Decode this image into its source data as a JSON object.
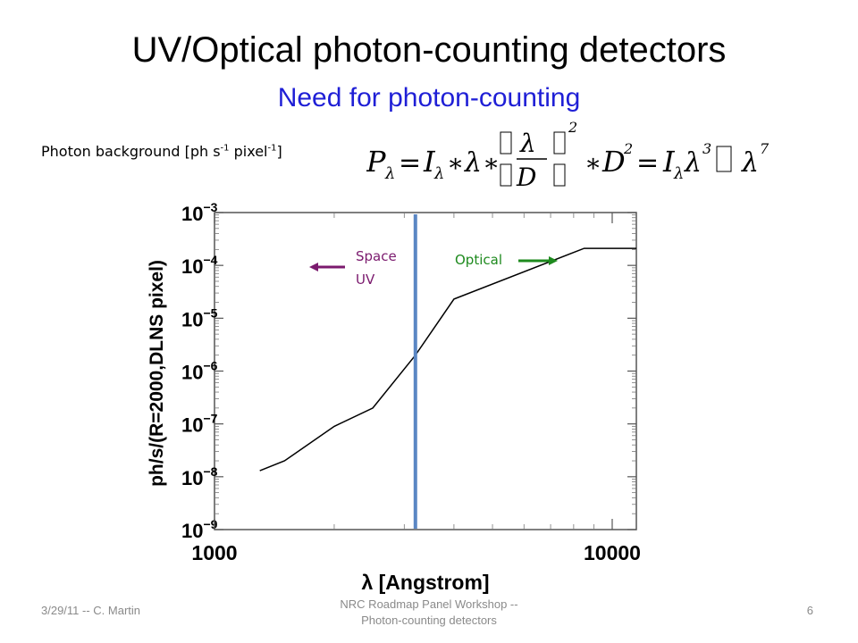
{
  "slide": {
    "title": "UV/Optical photon-counting detectors",
    "subtitle": "Need for photon-counting",
    "background_label": "Photon background [ph s",
    "background_label_exp1": "-1",
    "background_label_mid": " pixel",
    "background_label_exp2": "-1",
    "background_label_end": "]"
  },
  "footer": {
    "left": "3/29/11 -- C. Martin",
    "center_line1": "NRC Roadmap Panel Workshop --",
    "center_line2": "Photon-counting detectors",
    "page_number": "6"
  },
  "colors": {
    "subtitle": "#1f1fd6",
    "space_uv": "#7b1a6e",
    "optical": "#1e8a1e",
    "divider_line": "#5b87c4"
  },
  "chart_data": {
    "type": "line",
    "xscale": "log",
    "yscale": "log",
    "xlabel": "λ [Angstrom]",
    "ylabel": "ph/s/(R=2000,DLNS pixel)",
    "xlim": [
      1000,
      11500
    ],
    "ylim": [
      1e-09,
      0.001
    ],
    "x_ticks": [
      {
        "value": 1000,
        "label": "1000"
      },
      {
        "value": 10000,
        "label": "10000"
      }
    ],
    "y_ticks": [
      {
        "value": 0.001,
        "base": "10",
        "exp": "−3"
      },
      {
        "value": 0.0001,
        "base": "10",
        "exp": "−4"
      },
      {
        "value": 1e-05,
        "base": "10",
        "exp": "−5"
      },
      {
        "value": 1e-06,
        "base": "10",
        "exp": "−6"
      },
      {
        "value": 1e-07,
        "base": "10",
        "exp": "−7"
      },
      {
        "value": 1e-08,
        "base": "10",
        "exp": "−8"
      },
      {
        "value": 1e-09,
        "base": "10",
        "exp": "−9"
      }
    ],
    "series": [
      {
        "x": [
          1300,
          1500,
          2000,
          2500,
          3200,
          4000,
          8500,
          11500
        ],
        "y": [
          1.3e-08,
          2e-08,
          9e-08,
          2e-07,
          2e-06,
          2.3e-05,
          0.00021,
          0.00021
        ]
      }
    ],
    "vertical_line_x": 3200,
    "annotations": [
      {
        "text_line1": "Space",
        "text_line2": "UV",
        "arrow": "left"
      },
      {
        "text_line1": "Optical",
        "text_line2": "",
        "arrow": "right"
      }
    ],
    "grid": false
  }
}
